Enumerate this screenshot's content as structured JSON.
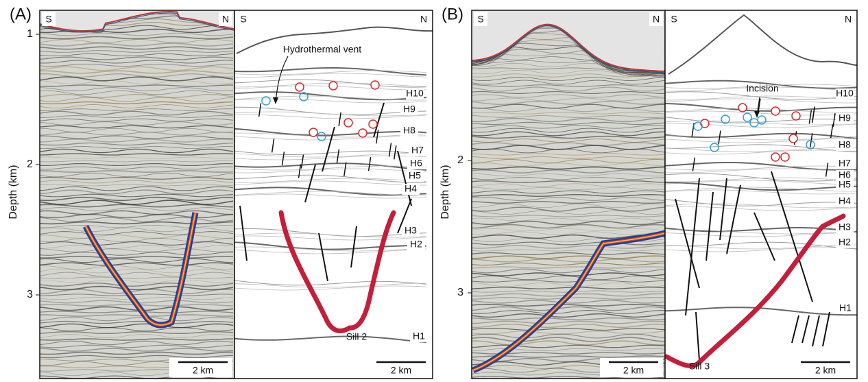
{
  "panels": [
    {
      "label": "(A)",
      "y_axis": {
        "label": "Depth (km)",
        "ticks": [
          "1",
          "2",
          "3"
        ]
      },
      "seismic": {
        "left": "S",
        "right": "N",
        "scale": "2 km"
      },
      "interpretation": {
        "left": "S",
        "right": "N",
        "scale": "2 km",
        "annotations": [
          "Hydrothermal vent",
          "Sill 2"
        ],
        "horizons": [
          "H10",
          "H9",
          "H8",
          "H7",
          "H6",
          "H5",
          "H4",
          "H3",
          "H2",
          "H1"
        ]
      }
    },
    {
      "label": "(B)",
      "y_axis": {
        "label": "Depth (km)",
        "ticks": [
          "2",
          "3"
        ]
      },
      "seismic": {
        "left": "S",
        "right": "N",
        "scale": "2 km"
      },
      "interpretation": {
        "left": "S",
        "right": "N",
        "scale": "2 km",
        "annotations": [
          "Incision",
          "Sill 3"
        ],
        "horizons": [
          "H10",
          "H9",
          "H8",
          "H7",
          "H6",
          "H5",
          "H4",
          "H3",
          "H2",
          "H1"
        ]
      }
    }
  ]
}
